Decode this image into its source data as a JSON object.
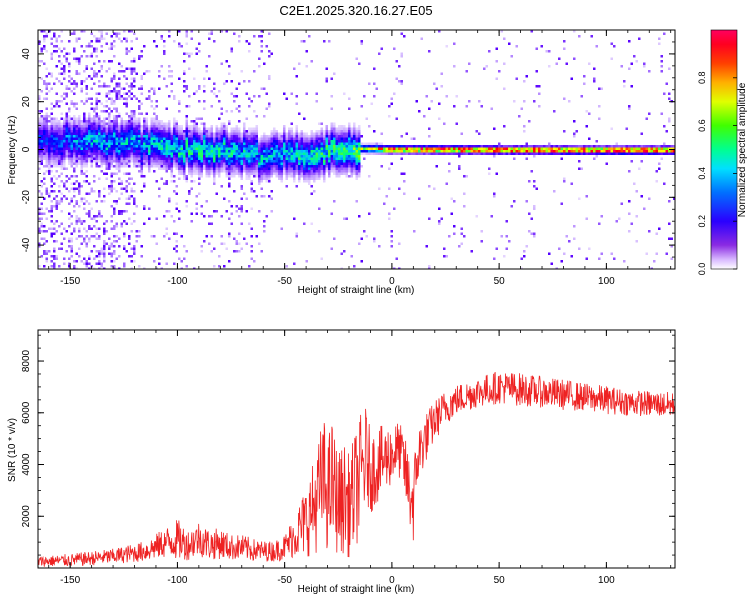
{
  "chart_data": [
    {
      "type": "heatmap",
      "title": "C2E1.2025.320.16.27.E05",
      "xlabel": "Height of straight line (km)",
      "ylabel": "Frequency (Hz)",
      "xlim": [
        -165,
        132
      ],
      "ylim": [
        -50,
        50
      ],
      "xticks": [
        -150,
        -100,
        -50,
        0,
        50,
        100
      ],
      "yticks": [
        -40,
        -20,
        0,
        20,
        40
      ],
      "colorbar": {
        "label": "Normalized spectral amplitude",
        "range": [
          0,
          1
        ],
        "ticks": [
          "0.0",
          "0.2",
          "0.4",
          "0.6",
          "0.8"
        ],
        "colors": [
          "#ffffff",
          "#b080ff",
          "#5a00ff",
          "#0000ff",
          "#00ccff",
          "#00ff80",
          "#80ff00",
          "#ffff00",
          "#ff8000",
          "#ff0000",
          "#ff0060"
        ]
      },
      "ridge": {
        "description_points_height_km": [
          -160,
          -140,
          -120,
          -100,
          -80,
          -60,
          -40,
          -20,
          0,
          50,
          100,
          130
        ],
        "center_frequency_hz": [
          3,
          4,
          3,
          1,
          0,
          -1,
          -2,
          1,
          0.5,
          0.3,
          0.2,
          0.2
        ],
        "peak_amplitude": [
          0.3,
          0.4,
          0.4,
          0.45,
          0.45,
          0.4,
          0.45,
          0.5,
          0.85,
          0.9,
          0.9,
          0.9
        ]
      }
    },
    {
      "type": "line",
      "xlabel": "Height of straight line (km)",
      "ylabel": "SNR (10 * v/v)",
      "xlim": [
        -165,
        132
      ],
      "ylim": [
        0,
        9200
      ],
      "xticks": [
        -150,
        -100,
        -50,
        0,
        50,
        100
      ],
      "yticks": [
        2000,
        4000,
        6000,
        8000
      ],
      "series": [
        {
          "name": "SNR",
          "color": "#ee2222",
          "x": [
            -165,
            -150,
            -130,
            -115,
            -105,
            -100,
            -95,
            -90,
            -85,
            -80,
            -75,
            -70,
            -65,
            -60,
            -55,
            -50,
            -45,
            -40,
            -35,
            -32,
            -30,
            -28,
            -25,
            -22,
            -20,
            -18,
            -15,
            -12,
            -10,
            -5,
            0,
            3,
            5,
            8,
            10,
            12,
            15,
            20,
            25,
            30,
            40,
            50,
            60,
            70,
            80,
            90,
            100,
            110,
            120,
            132
          ],
          "values": [
            250,
            300,
            450,
            650,
            1000,
            1100,
            900,
            1150,
            900,
            950,
            800,
            800,
            700,
            650,
            650,
            800,
            1300,
            1800,
            2600,
            3500,
            2800,
            3300,
            2500,
            2700,
            2400,
            2800,
            3500,
            4300,
            3700,
            4100,
            4400,
            4600,
            4300,
            3000,
            2500,
            4300,
            4900,
            5700,
            6200,
            6500,
            6800,
            7000,
            6900,
            6800,
            6700,
            6600,
            6500,
            6400,
            6350,
            6300
          ],
          "noise": [
            200,
            250,
            300,
            400,
            600,
            800,
            600,
            700,
            600,
            600,
            500,
            500,
            450,
            400,
            400,
            500,
            900,
            1400,
            2000,
            2500,
            2200,
            2500,
            2000,
            2200,
            2000,
            2200,
            2400,
            2000,
            1600,
            1400,
            1200,
            1100,
            1100,
            1500,
            1600,
            1200,
            1000,
            800,
            700,
            600,
            600,
            650,
            650,
            600,
            600,
            550,
            550,
            500,
            500,
            500
          ]
        }
      ]
    }
  ]
}
